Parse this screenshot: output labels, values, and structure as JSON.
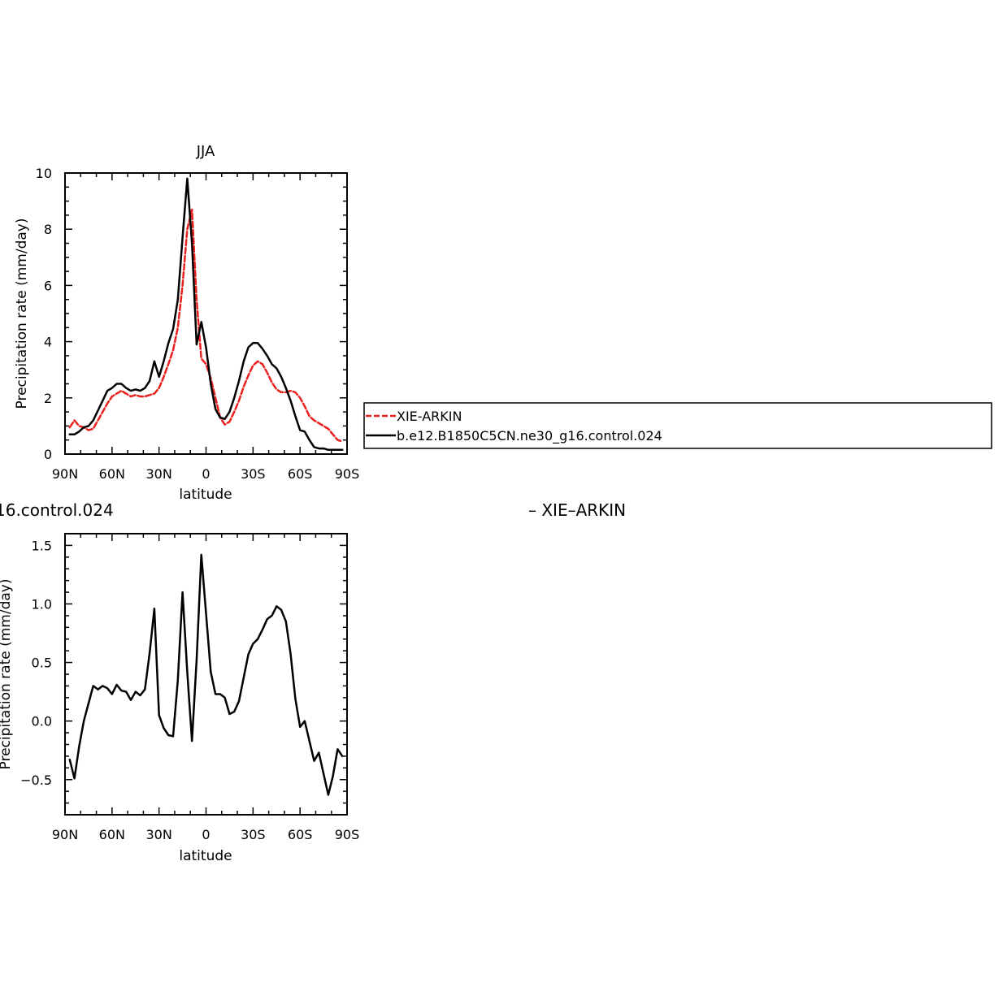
{
  "chart_data": [
    {
      "type": "line",
      "title": "JJA",
      "xlabel": "latitude",
      "ylabel": "Precipitation rate (mm/day)",
      "xlim": [
        90,
        -90
      ],
      "ylim": [
        0,
        10
      ],
      "x_ticks": [
        90,
        60,
        30,
        0,
        -30,
        -60,
        -90
      ],
      "x_tick_labels": [
        "90N",
        "60N",
        "30N",
        "0",
        "30S",
        "60S",
        "90S"
      ],
      "y_ticks": [
        0,
        2,
        4,
        6,
        8,
        10
      ],
      "y_tick_labels": [
        "0",
        "2",
        "4",
        "6",
        "8",
        "10"
      ],
      "grid": false,
      "legend_placement": "right",
      "series": [
        {
          "name": "XIE-ARKIN",
          "color": "#e8201e",
          "dash": "dashed",
          "x": [
            87,
            84,
            81,
            78,
            75,
            72,
            69,
            66,
            63,
            60,
            57,
            54,
            51,
            48,
            45,
            42,
            39,
            36,
            33,
            30,
            27,
            24,
            21,
            18,
            15,
            12,
            9,
            6,
            3,
            0,
            -3,
            -6,
            -9,
            -12,
            -15,
            -18,
            -21,
            -24,
            -27,
            -30,
            -33,
            -36,
            -39,
            -42,
            -45,
            -48,
            -51,
            -54,
            -57,
            -60,
            -63,
            -66,
            -69,
            -72,
            -75,
            -78,
            -81,
            -84,
            -87
          ],
          "y": [
            0.95,
            1.2,
            1.0,
            0.95,
            0.85,
            0.9,
            1.2,
            1.5,
            1.8,
            2.05,
            2.15,
            2.25,
            2.15,
            2.05,
            2.1,
            2.05,
            2.05,
            2.1,
            2.15,
            2.35,
            2.75,
            3.2,
            3.7,
            4.5,
            6.0,
            8.0,
            8.7,
            5.5,
            3.4,
            3.2,
            2.7,
            2.0,
            1.3,
            1.05,
            1.15,
            1.5,
            1.9,
            2.4,
            2.8,
            3.15,
            3.3,
            3.2,
            2.9,
            2.55,
            2.3,
            2.2,
            2.2,
            2.25,
            2.2,
            2.0,
            1.7,
            1.35,
            1.2,
            1.1,
            1.0,
            0.9,
            0.7,
            0.5,
            0.45
          ]
        },
        {
          "name": "b.e12.B1850C5CN.ne30_g16.control.024",
          "color": "#000000",
          "dash": "solid",
          "x": [
            87,
            84,
            81,
            78,
            75,
            72,
            69,
            66,
            63,
            60,
            57,
            54,
            51,
            48,
            45,
            42,
            39,
            36,
            33,
            30,
            27,
            24,
            21,
            18,
            15,
            12,
            9,
            6,
            3,
            0,
            -3,
            -6,
            -9,
            -12,
            -15,
            -18,
            -21,
            -24,
            -27,
            -30,
            -33,
            -36,
            -39,
            -42,
            -45,
            -48,
            -51,
            -54,
            -57,
            -60,
            -63,
            -66,
            -69,
            -72,
            -75,
            -78,
            -81,
            -84,
            -87
          ],
          "y": [
            0.7,
            0.7,
            0.8,
            0.95,
            1.0,
            1.2,
            1.55,
            1.9,
            2.25,
            2.35,
            2.5,
            2.5,
            2.35,
            2.25,
            2.3,
            2.25,
            2.35,
            2.6,
            3.3,
            2.75,
            3.3,
            3.95,
            4.45,
            5.5,
            7.7,
            9.8,
            7.5,
            3.9,
            4.7,
            3.8,
            2.5,
            1.6,
            1.3,
            1.25,
            1.5,
            2.0,
            2.6,
            3.3,
            3.8,
            3.95,
            3.95,
            3.75,
            3.5,
            3.2,
            3.05,
            2.75,
            2.35,
            1.9,
            1.35,
            0.85,
            0.8,
            0.5,
            0.25,
            0.2,
            0.2,
            0.15,
            0.15,
            0.15,
            0.15
          ]
        }
      ]
    },
    {
      "type": "line",
      "title": "16.control.024",
      "title_right": "– XIE–ARKIN",
      "xlabel": "latitude",
      "ylabel": "Precipitation rate (mm/day)",
      "xlim": [
        90,
        -90
      ],
      "ylim": [
        -0.8,
        1.6
      ],
      "x_ticks": [
        90,
        60,
        30,
        0,
        -30,
        -60,
        -90
      ],
      "x_tick_labels": [
        "90N",
        "60N",
        "30N",
        "0",
        "30S",
        "60S",
        "90S"
      ],
      "y_ticks": [
        -0.5,
        0,
        0.5,
        1.0,
        1.5
      ],
      "y_tick_labels": [
        "−0.5",
        "0.0",
        "0.5",
        "1.0",
        "1.5"
      ],
      "grid": false,
      "series": [
        {
          "color": "#000000",
          "dash": "solid",
          "x": [
            87,
            84,
            81,
            78,
            75,
            72,
            69,
            66,
            63,
            60,
            57,
            54,
            51,
            48,
            45,
            42,
            39,
            36,
            33,
            30,
            27,
            24,
            21,
            18,
            15,
            12,
            9,
            6,
            3,
            0,
            -3,
            -6,
            -9,
            -12,
            -15,
            -18,
            -21,
            -24,
            -27,
            -30,
            -33,
            -36,
            -39,
            -42,
            -45,
            -48,
            -51,
            -54,
            -57,
            -60,
            -63,
            -66,
            -69,
            -72,
            -75,
            -78,
            -81,
            -84,
            -87
          ],
          "y": [
            -0.33,
            -0.49,
            -0.22,
            0.0,
            0.15,
            0.3,
            0.27,
            0.3,
            0.28,
            0.23,
            0.31,
            0.26,
            0.25,
            0.18,
            0.25,
            0.22,
            0.27,
            0.58,
            0.96,
            0.05,
            -0.06,
            -0.12,
            -0.13,
            0.35,
            1.1,
            0.42,
            -0.17,
            0.52,
            1.42,
            0.92,
            0.42,
            0.23,
            0.23,
            0.2,
            0.06,
            0.08,
            0.17,
            0.37,
            0.57,
            0.66,
            0.7,
            0.78,
            0.87,
            0.9,
            0.98,
            0.95,
            0.85,
            0.57,
            0.19,
            -0.05,
            0.0,
            -0.17,
            -0.34,
            -0.27,
            -0.45,
            -0.63,
            -0.47,
            -0.24,
            -0.3
          ]
        }
      ]
    }
  ]
}
